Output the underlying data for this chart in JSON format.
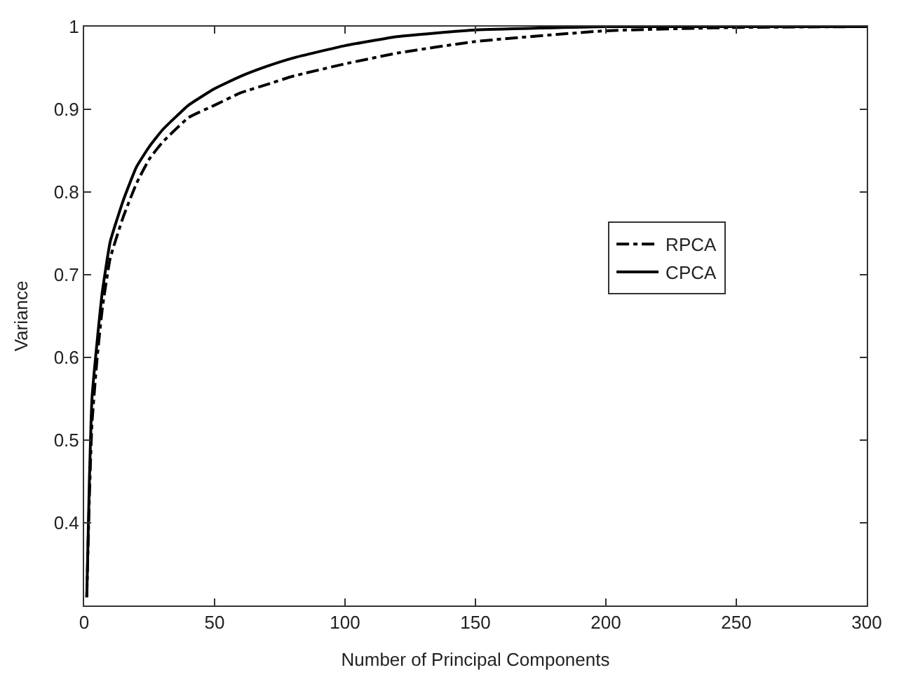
{
  "chart_data": {
    "type": "line",
    "xlabel": "Number of Principal Components",
    "ylabel": "Variance",
    "xlim": [
      0,
      300
    ],
    "xticks": [
      0,
      50,
      100,
      150,
      200,
      250,
      300
    ],
    "ylim": [
      0.3,
      1
    ],
    "yticks": [
      0.4,
      0.5,
      0.6,
      0.7,
      0.8,
      0.9,
      1
    ],
    "legend": "right",
    "marker": "none",
    "x": [
      1,
      2,
      3,
      5,
      7,
      10,
      15,
      20,
      25,
      30,
      40,
      50,
      60,
      70,
      80,
      100,
      120,
      150,
      200,
      250,
      300
    ],
    "series": [
      {
        "name": "RPCA",
        "color": "#000000",
        "line_style": "dashdot",
        "values": [
          0.31,
          0.43,
          0.52,
          0.6,
          0.66,
          0.72,
          0.77,
          0.81,
          0.84,
          0.86,
          0.89,
          0.905,
          0.92,
          0.93,
          0.94,
          0.955,
          0.968,
          0.982,
          0.995,
          0.999,
          1.0
        ]
      },
      {
        "name": "CPCA",
        "color": "#000000",
        "line_style": "solid",
        "values": [
          0.31,
          0.45,
          0.55,
          0.62,
          0.68,
          0.74,
          0.79,
          0.83,
          0.855,
          0.875,
          0.905,
          0.925,
          0.94,
          0.952,
          0.962,
          0.977,
          0.988,
          0.996,
          1.0,
          1.0,
          1.0
        ]
      }
    ]
  }
}
